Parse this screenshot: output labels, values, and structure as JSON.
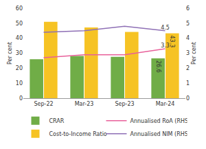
{
  "chart_data": {
    "type": "bar",
    "categories": [
      "Sep-22",
      "Mar-23",
      "Sep-23",
      "Mar-24"
    ],
    "y_label": "Per cent",
    "y2_label": "Per cent",
    "ylim": [
      0,
      60
    ],
    "yticks": [
      0,
      10,
      20,
      30,
      40,
      50,
      60
    ],
    "y2lim": [
      0,
      6
    ],
    "y2ticks": [
      0,
      1,
      2,
      3,
      4,
      5,
      6
    ],
    "grid": false,
    "legend": "bottom",
    "series": [
      {
        "name": "CRAR",
        "type": "bar",
        "color": "#70ad47",
        "values": [
          26.0,
          28.2,
          27.6,
          26.6
        ],
        "value_labels": [
          null,
          null,
          null,
          "26.6"
        ]
      },
      {
        "name": "Annualised RoA (RHS)",
        "type": "line",
        "axis": "y2",
        "color": "#e8609a",
        "values": [
          2.7,
          2.9,
          2.9,
          3.3
        ],
        "value_labels": [
          null,
          null,
          null,
          "3.3"
        ]
      },
      {
        "name": "Cost-to-Income Ratio",
        "type": "bar",
        "color": "#f6c324",
        "values": [
          51.0,
          47.2,
          44.2,
          43.3
        ],
        "value_labels": [
          null,
          null,
          null,
          "43.3"
        ]
      },
      {
        "name": "Annualised NIM (RHS)",
        "type": "line",
        "axis": "y2",
        "color": "#8e6fb5",
        "values": [
          4.4,
          4.5,
          4.8,
          4.5
        ],
        "value_labels": [
          null,
          null,
          null,
          "4.5"
        ]
      }
    ]
  }
}
